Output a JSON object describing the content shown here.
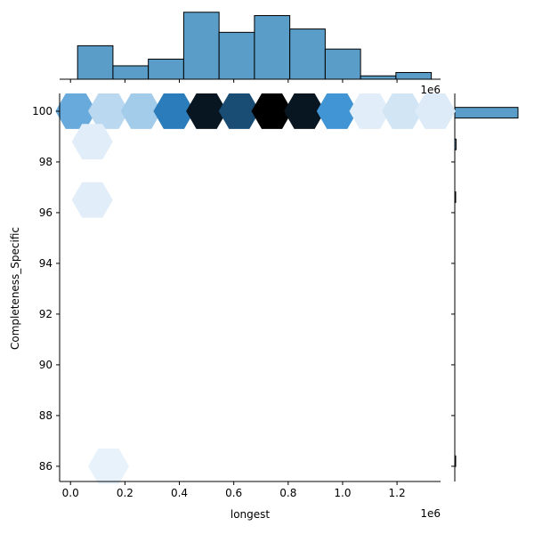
{
  "chart_data": {
    "type": "hexbin-jointplot",
    "xlabel": "longest",
    "ylabel": "Completeness_Specific",
    "x_offset_label": "1e6",
    "top_offset_label": "1e6",
    "xlim": [
      -0.04,
      1.36
    ],
    "ylim": [
      85.4,
      100.7
    ],
    "x_ticks": [
      0.0,
      0.2,
      0.4,
      0.6,
      0.8,
      1.0,
      1.2
    ],
    "x_tick_labels": [
      "0.0",
      "0.2",
      "0.4",
      "0.6",
      "0.8",
      "1.0",
      "1.2"
    ],
    "y_ticks": [
      86,
      88,
      90,
      92,
      94,
      96,
      98,
      100
    ],
    "y_tick_labels": [
      "86",
      "88",
      "90",
      "92",
      "94",
      "96",
      "98",
      "100"
    ],
    "hexbins": [
      {
        "x": 0.02,
        "y": 100.0,
        "intensity": 0.35
      },
      {
        "x": 0.14,
        "y": 100.0,
        "intensity": 0.14
      },
      {
        "x": 0.26,
        "y": 100.0,
        "intensity": 0.2
      },
      {
        "x": 0.38,
        "y": 100.0,
        "intensity": 0.55
      },
      {
        "x": 0.5,
        "y": 100.0,
        "intensity": 0.92
      },
      {
        "x": 0.62,
        "y": 100.0,
        "intensity": 0.72
      },
      {
        "x": 0.74,
        "y": 100.0,
        "intensity": 1.0
      },
      {
        "x": 0.86,
        "y": 100.0,
        "intensity": 0.92
      },
      {
        "x": 0.98,
        "y": 100.0,
        "intensity": 0.45
      },
      {
        "x": 1.1,
        "y": 100.0,
        "intensity": 0.04
      },
      {
        "x": 1.22,
        "y": 100.0,
        "intensity": 0.08
      },
      {
        "x": 1.34,
        "y": 100.0,
        "intensity": 0.05
      },
      {
        "x": 0.08,
        "y": 98.8,
        "intensity": 0.04
      },
      {
        "x": 0.08,
        "y": 96.5,
        "intensity": 0.04
      },
      {
        "x": 0.14,
        "y": 86.0,
        "intensity": 0.02
      }
    ],
    "x_histogram": {
      "bin_edges": [
        0.026,
        0.156,
        0.286,
        0.416,
        0.546,
        0.676,
        0.806,
        0.936,
        1.066,
        1.196,
        1.326
      ],
      "counts": [
        10,
        4,
        6,
        20,
        14,
        19,
        15,
        9,
        1,
        2
      ],
      "ymax": 21
    },
    "y_histogram": {
      "bin_edges": [
        85.99,
        86.41,
        86.82,
        87.24,
        87.65,
        88.07,
        88.49,
        88.9,
        89.32,
        89.74,
        90.15,
        90.57,
        90.99,
        91.4,
        91.82,
        92.24,
        92.65,
        93.07,
        93.48,
        93.9,
        94.32,
        94.73,
        95.15,
        95.57,
        95.98,
        96.4,
        96.82,
        97.23,
        97.65,
        98.07,
        98.48,
        98.9,
        99.32,
        99.73,
        100.15
      ],
      "counts": [
        1,
        0,
        0,
        0,
        0,
        0,
        0,
        0,
        0,
        0,
        0,
        0,
        0,
        0,
        0,
        0,
        0,
        0,
        0,
        0,
        0,
        0,
        0,
        0,
        0,
        1,
        0,
        0,
        0,
        0,
        2,
        0,
        0,
        100
      ],
      "xmax": 100
    },
    "colors": {
      "hist_fill": "#5a9dc9",
      "hist_edge": "#000000",
      "hex_low": "#f0f6fc",
      "hex_mid": "#2f8ad0",
      "hex_high": "#000000"
    }
  }
}
